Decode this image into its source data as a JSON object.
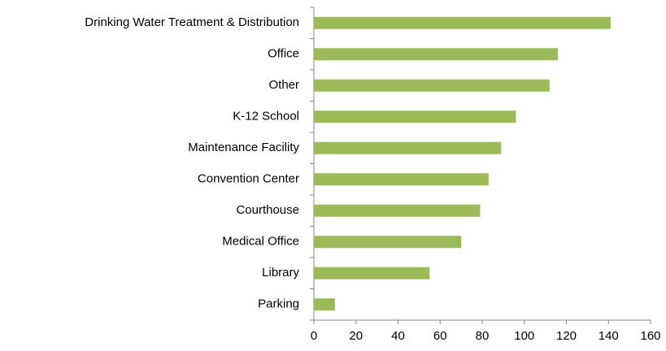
{
  "chart_data": {
    "type": "barh",
    "categories": [
      "Drinking Water Treatment & Distribution",
      "Office",
      "Other",
      "K-12 School",
      "Maintenance Facility",
      "Convention Center",
      "Courthouse",
      "Medical Office",
      "Library",
      "Parking"
    ],
    "values": [
      141,
      116,
      112,
      96,
      89,
      83,
      79,
      70,
      55,
      10
    ],
    "color": "#9bbb59",
    "xlim": [
      0,
      160
    ],
    "xticks": [
      0,
      20,
      40,
      60,
      80,
      100,
      120,
      140,
      160
    ]
  }
}
